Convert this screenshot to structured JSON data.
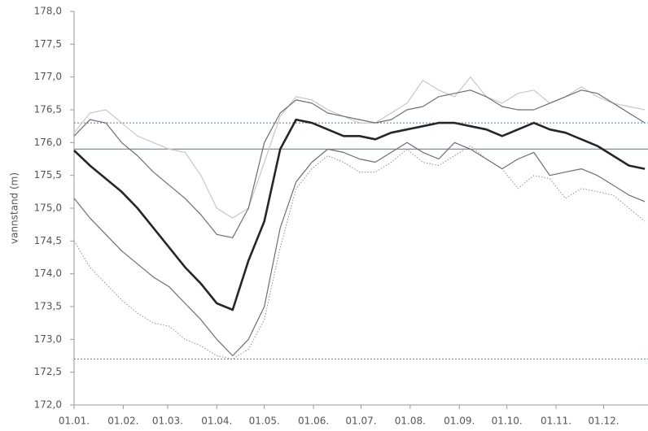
{
  "chart_data": {
    "type": "line",
    "ylabel": "vannstand (m)",
    "x": [
      0,
      10,
      20,
      30,
      40,
      50,
      60,
      70,
      80,
      90,
      100,
      110,
      120,
      130,
      140,
      150,
      160,
      170,
      180,
      190,
      200,
      210,
      220,
      230,
      240,
      250,
      260,
      270,
      280,
      290,
      300,
      310,
      320,
      330,
      340,
      350,
      360
    ],
    "xlim": [
      0,
      362
    ],
    "xticks": [
      {
        "value": 0,
        "label": "01.01."
      },
      {
        "value": 31,
        "label": "01.02."
      },
      {
        "value": 59,
        "label": "01.03."
      },
      {
        "value": 90,
        "label": "01.04."
      },
      {
        "value": 120,
        "label": "01.05."
      },
      {
        "value": 151,
        "label": "01.06."
      },
      {
        "value": 181,
        "label": "01.07."
      },
      {
        "value": 212,
        "label": "01.08."
      },
      {
        "value": 243,
        "label": "01.09."
      },
      {
        "value": 273,
        "label": "01.10."
      },
      {
        "value": 304,
        "label": "01.11."
      },
      {
        "value": 334,
        "label": "01.12."
      }
    ],
    "ylim": [
      172,
      178
    ],
    "yticks": [
      {
        "value": 172,
        "label": "172,0"
      },
      {
        "value": 172.5,
        "label": "172,5"
      },
      {
        "value": 173,
        "label": "173,0"
      },
      {
        "value": 173.5,
        "label": "173,5"
      },
      {
        "value": 174,
        "label": "174,0"
      },
      {
        "value": 174.5,
        "label": "174,5"
      },
      {
        "value": 175,
        "label": "175,0"
      },
      {
        "value": 175.5,
        "label": "175,5"
      },
      {
        "value": 176,
        "label": "176,0"
      },
      {
        "value": 176.5,
        "label": "176,5"
      },
      {
        "value": 177,
        "label": "177,0"
      },
      {
        "value": 177.5,
        "label": "177,5"
      },
      {
        "value": 178,
        "label": "178,0"
      }
    ],
    "reference_lines": [
      {
        "value": 176.3,
        "color": "#5b9bd5",
        "dash": "2 2"
      },
      {
        "value": 175.9,
        "color": "#5b9bd5",
        "dash": "none"
      },
      {
        "value": 172.7,
        "color": "#5b9bd5",
        "dash": "2 2"
      }
    ],
    "series": [
      {
        "color": "#c8c8c8",
        "width": 1.2,
        "dash": "none",
        "values": [
          176.15,
          176.45,
          176.5,
          176.3,
          176.1,
          176.0,
          175.9,
          175.85,
          175.5,
          175.0,
          174.85,
          175.0,
          175.7,
          176.4,
          176.7,
          176.65,
          176.5,
          176.4,
          176.3,
          176.3,
          176.45,
          176.6,
          176.95,
          176.8,
          176.7,
          177.0,
          176.7,
          176.6,
          176.75,
          176.8,
          176.6,
          176.7,
          176.85,
          176.7,
          176.6,
          176.55,
          176.5
        ]
      },
      {
        "color": "#909090",
        "width": 1,
        "dash": "1.5 2",
        "values": [
          174.5,
          174.1,
          173.85,
          173.6,
          173.4,
          173.25,
          173.2,
          173.0,
          172.9,
          172.75,
          172.7,
          172.85,
          173.3,
          174.4,
          175.3,
          175.6,
          175.8,
          175.7,
          175.55,
          175.55,
          175.7,
          175.9,
          175.7,
          175.65,
          175.8,
          175.95,
          175.75,
          175.6,
          175.3,
          175.5,
          175.45,
          175.15,
          175.3,
          175.25,
          175.2,
          175.0,
          174.8
        ]
      },
      {
        "color": "#6e6e6e",
        "width": 1.2,
        "dash": "none",
        "values": [
          176.1,
          176.35,
          176.3,
          176.0,
          175.8,
          175.55,
          175.35,
          175.15,
          174.9,
          174.6,
          174.55,
          175.0,
          176.0,
          176.45,
          176.65,
          176.6,
          176.45,
          176.4,
          176.35,
          176.3,
          176.35,
          176.5,
          176.55,
          176.7,
          176.75,
          176.8,
          176.7,
          176.55,
          176.5,
          176.5,
          176.6,
          176.7,
          176.8,
          176.75,
          176.6,
          176.45,
          176.3
        ]
      },
      {
        "color": "#6e6e6e",
        "width": 1.2,
        "dash": "none",
        "values": [
          175.15,
          174.85,
          174.6,
          174.35,
          174.15,
          173.95,
          173.8,
          173.55,
          173.3,
          173.0,
          172.75,
          173.0,
          173.5,
          174.7,
          175.4,
          175.7,
          175.9,
          175.85,
          175.75,
          175.7,
          175.85,
          176.0,
          175.85,
          175.75,
          176.0,
          175.9,
          175.75,
          175.6,
          175.75,
          175.85,
          175.5,
          175.55,
          175.6,
          175.5,
          175.35,
          175.2,
          175.1
        ]
      },
      {
        "color": "#262626",
        "width": 2.6,
        "dash": "none",
        "values": [
          175.88,
          175.65,
          175.45,
          175.25,
          175.0,
          174.7,
          174.4,
          174.1,
          173.85,
          173.55,
          173.45,
          174.2,
          174.8,
          175.9,
          176.35,
          176.3,
          176.2,
          176.1,
          176.1,
          176.05,
          176.15,
          176.2,
          176.25,
          176.3,
          176.3,
          176.25,
          176.2,
          176.1,
          176.2,
          176.3,
          176.2,
          176.15,
          176.05,
          175.95,
          175.8,
          175.65,
          175.6
        ]
      }
    ]
  }
}
